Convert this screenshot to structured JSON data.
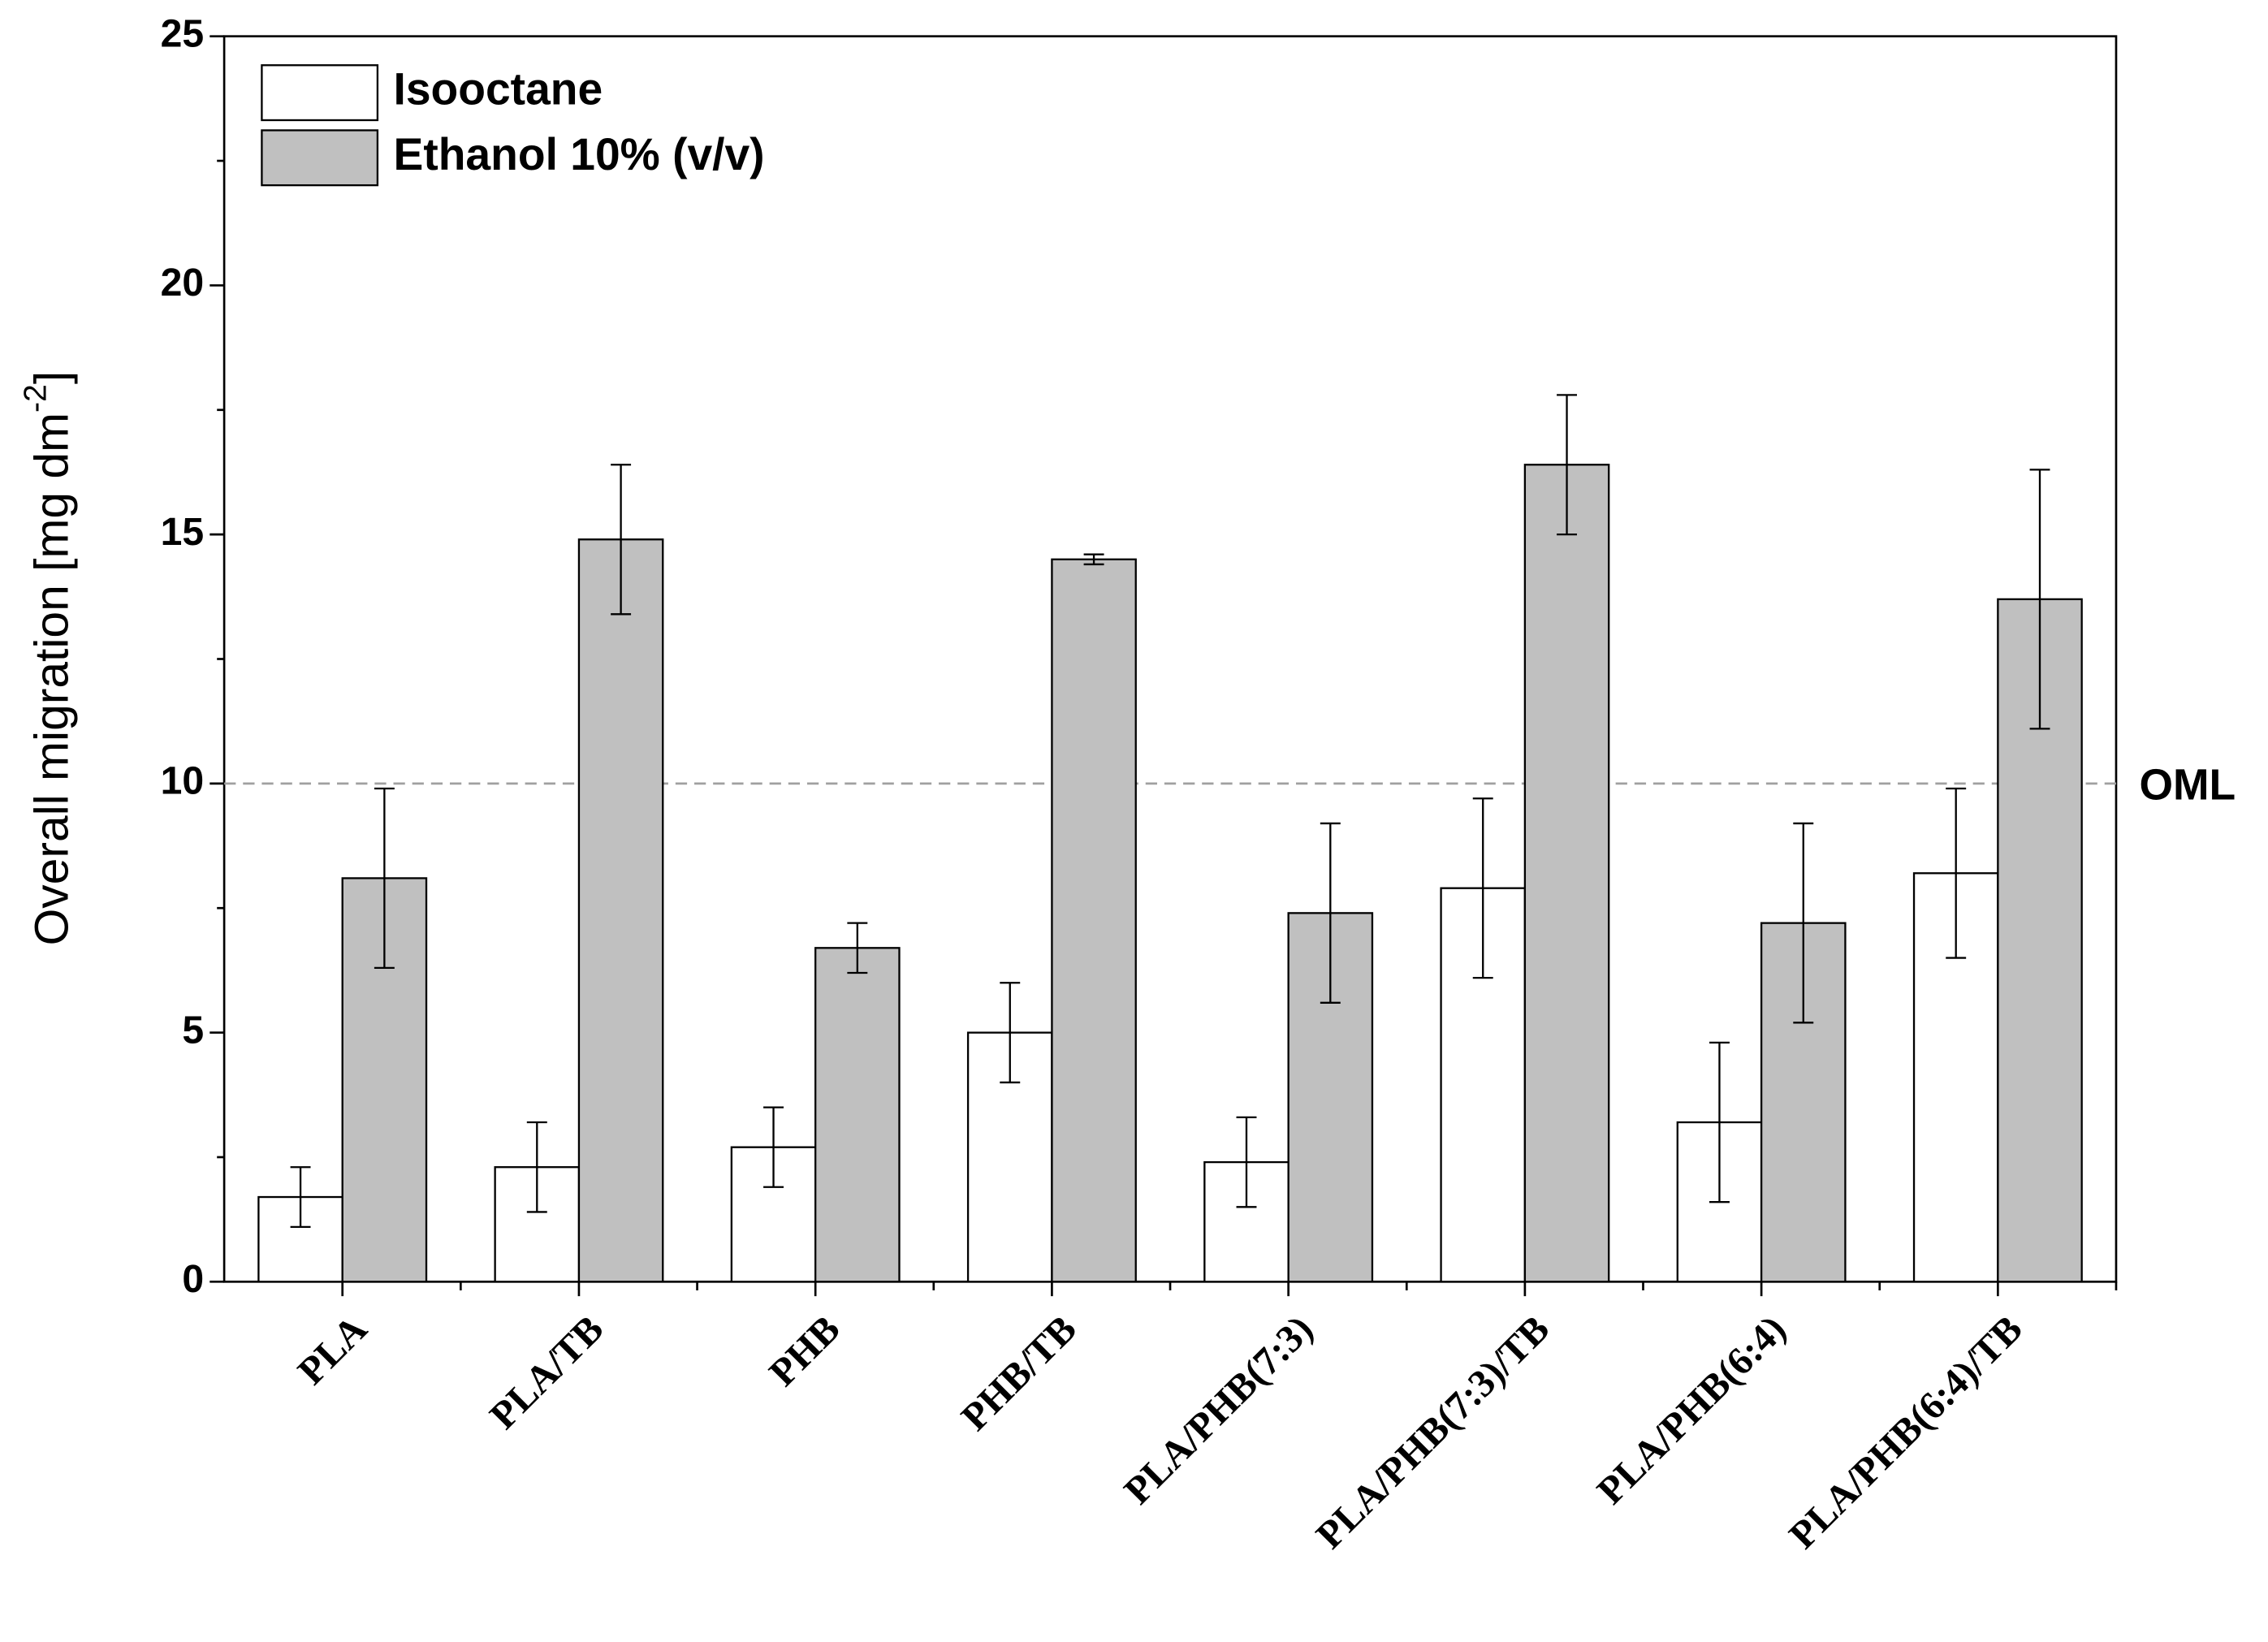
{
  "chart_data": {
    "type": "bar",
    "y_label": "Overall migration [mg dm",
    "y_label_sup": "-2",
    "y_label_end": "]",
    "categories": [
      "PLA",
      "PLA/TB",
      "PHB",
      "PHB/TB",
      "PLA/PHB(7:3)",
      "PLA/PHB(7:3)/TB",
      "PLA/PHB(6:4)",
      "PLA/PHB(6:4)/TB"
    ],
    "series": [
      {
        "name": "Isooctane",
        "color": "#ffffff",
        "values": [
          1.7,
          2.3,
          2.7,
          5.0,
          2.4,
          7.9,
          3.2,
          8.2
        ],
        "errors": [
          0.6,
          0.9,
          0.8,
          1.0,
          0.9,
          1.8,
          1.6,
          1.7
        ]
      },
      {
        "name": "Ethanol 10% (v/v)",
        "color": "#c0c0c0",
        "values": [
          8.1,
          14.9,
          6.7,
          14.5,
          7.4,
          16.4,
          7.2,
          13.7
        ],
        "errors": [
          1.8,
          1.5,
          0.5,
          0.1,
          1.8,
          1.4,
          2.0,
          2.6
        ]
      }
    ],
    "reference_line": {
      "value": 10,
      "label": "OML",
      "color": "#a0a0a0"
    },
    "ylim": [
      0,
      25
    ],
    "yticks": [
      0,
      5,
      10,
      15,
      20,
      25
    ],
    "legend": "upper left"
  }
}
